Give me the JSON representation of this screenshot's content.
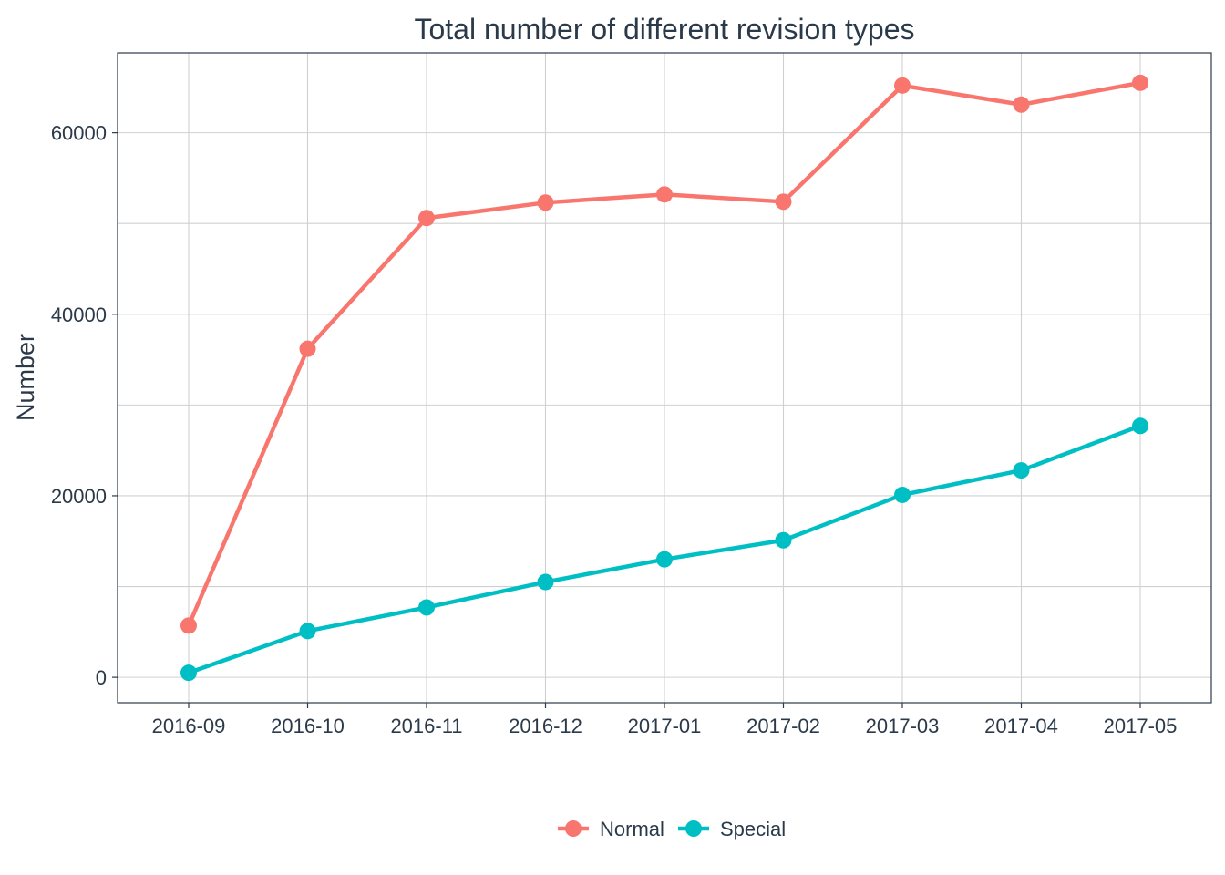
{
  "chart_data": {
    "type": "line",
    "title": "Total number of different revision types",
    "xlabel": "",
    "ylabel": "Number",
    "categories": [
      "2016-09",
      "2016-10",
      "2016-11",
      "2016-12",
      "2017-01",
      "2017-02",
      "2017-03",
      "2017-04",
      "2017-05"
    ],
    "ylim": [
      -2800,
      68800
    ],
    "y_ticks": [
      0,
      20000,
      40000,
      60000
    ],
    "y_tick_labels": [
      "0",
      "20000",
      "40000",
      "60000"
    ],
    "y_minor_ticks": [
      10000,
      30000,
      50000
    ],
    "grid": true,
    "legend_position": "bottom",
    "series": [
      {
        "name": "Normal",
        "color": "#F8766D",
        "values": [
          5700,
          36200,
          50600,
          52300,
          53200,
          52400,
          65200,
          63100,
          65500
        ]
      },
      {
        "name": "Special",
        "color": "#00BFC4",
        "values": [
          500,
          5100,
          7700,
          10500,
          13000,
          15100,
          20100,
          22800,
          27700
        ]
      }
    ]
  }
}
